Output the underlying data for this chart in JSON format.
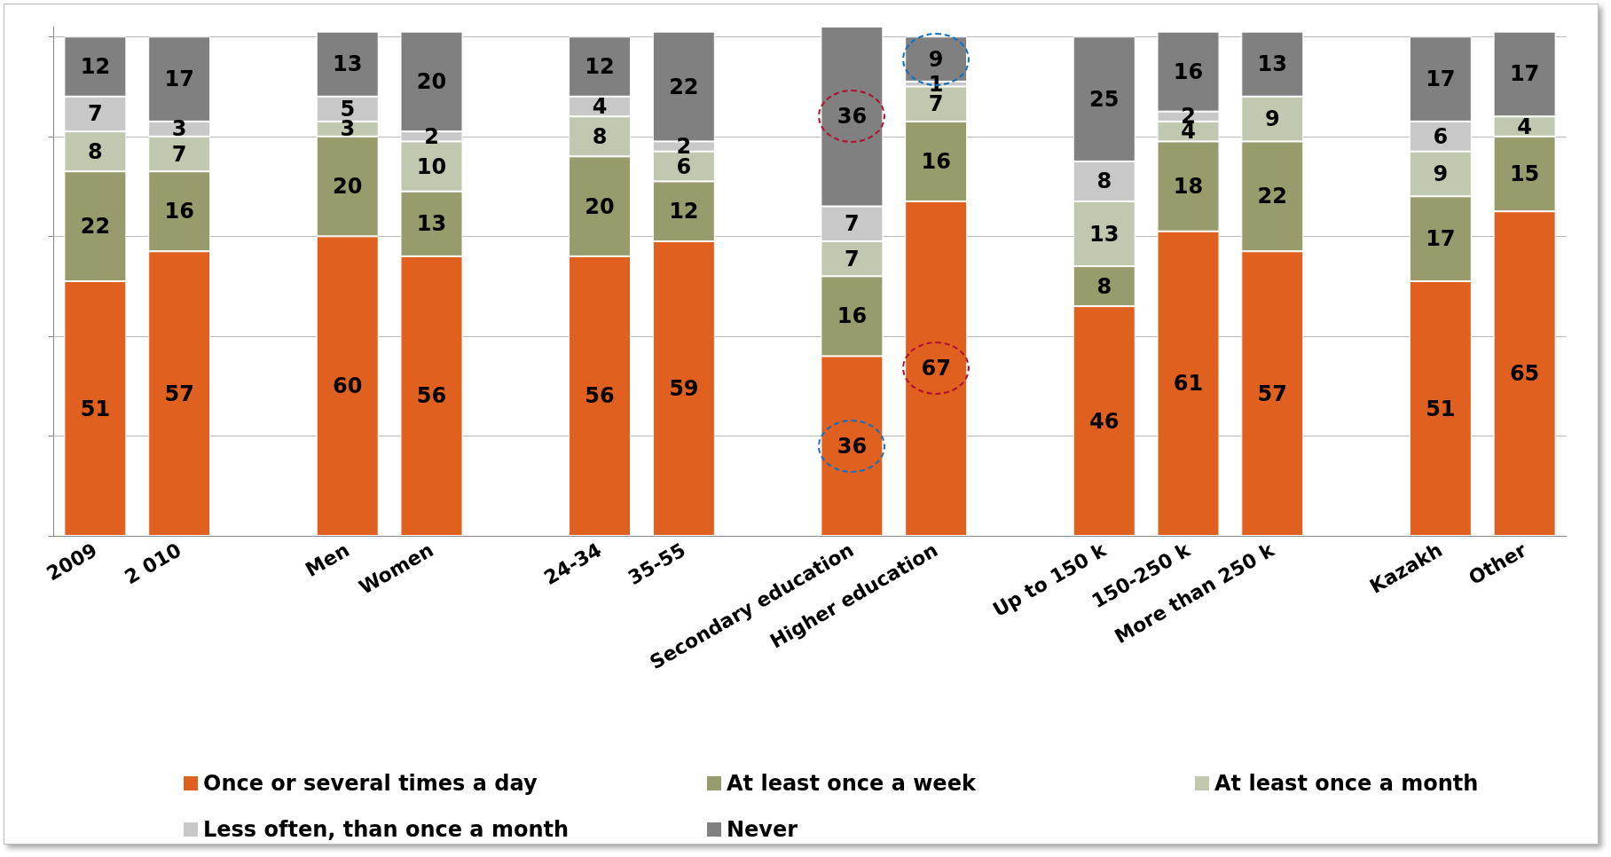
{
  "chart_data": {
    "type": "bar",
    "stacked": true,
    "data_labels": true,
    "grid": "y",
    "tick_labels": "x",
    "legend": "bottom",
    "categories": [
      "2009",
      "2 010",
      null,
      "Men",
      "Women",
      null,
      "24-34",
      "35-55",
      null,
      "Secondary education",
      "Higher education",
      null,
      "Up to 150 k",
      "150-250 k",
      "More than 250 k",
      null,
      "Kazakh",
      "Other"
    ],
    "ylim": [
      0,
      102
    ],
    "yticks": [
      {
        "value": 0,
        "label": null
      },
      {
        "value": 20,
        "label": null
      },
      {
        "value": 40,
        "label": null
      },
      {
        "value": 60,
        "label": null
      },
      {
        "value": 80,
        "label": null
      },
      {
        "value": 100,
        "label": null
      }
    ],
    "series": [
      {
        "name": "Once or several times a day",
        "color": "#e06020",
        "values": [
          51,
          57,
          null,
          60,
          56,
          null,
          56,
          59,
          null,
          36,
          67,
          null,
          46,
          61,
          57,
          null,
          51,
          65
        ]
      },
      {
        "name": "At least once a week",
        "color": "#989c6c",
        "values": [
          22,
          16,
          null,
          20,
          13,
          null,
          20,
          12,
          null,
          16,
          16,
          null,
          8,
          18,
          22,
          null,
          17,
          15
        ]
      },
      {
        "name": "At least once a month",
        "color": "#c0c8b0",
        "values": [
          8,
          7,
          null,
          3,
          10,
          null,
          8,
          6,
          null,
          7,
          7,
          null,
          13,
          4,
          9,
          null,
          9,
          4
        ]
      },
      {
        "name": "Less often, than once a month",
        "color": "#c8c8c8",
        "values": [
          7,
          3,
          null,
          5,
          2,
          null,
          4,
          2,
          null,
          7,
          1,
          null,
          8,
          2,
          null,
          null,
          6,
          null
        ]
      },
      {
        "name": "Never",
        "color": "#808080",
        "values": [
          12,
          17,
          null,
          13,
          20,
          null,
          12,
          22,
          null,
          36,
          9,
          null,
          25,
          16,
          13,
          null,
          17,
          17
        ]
      }
    ]
  }
}
